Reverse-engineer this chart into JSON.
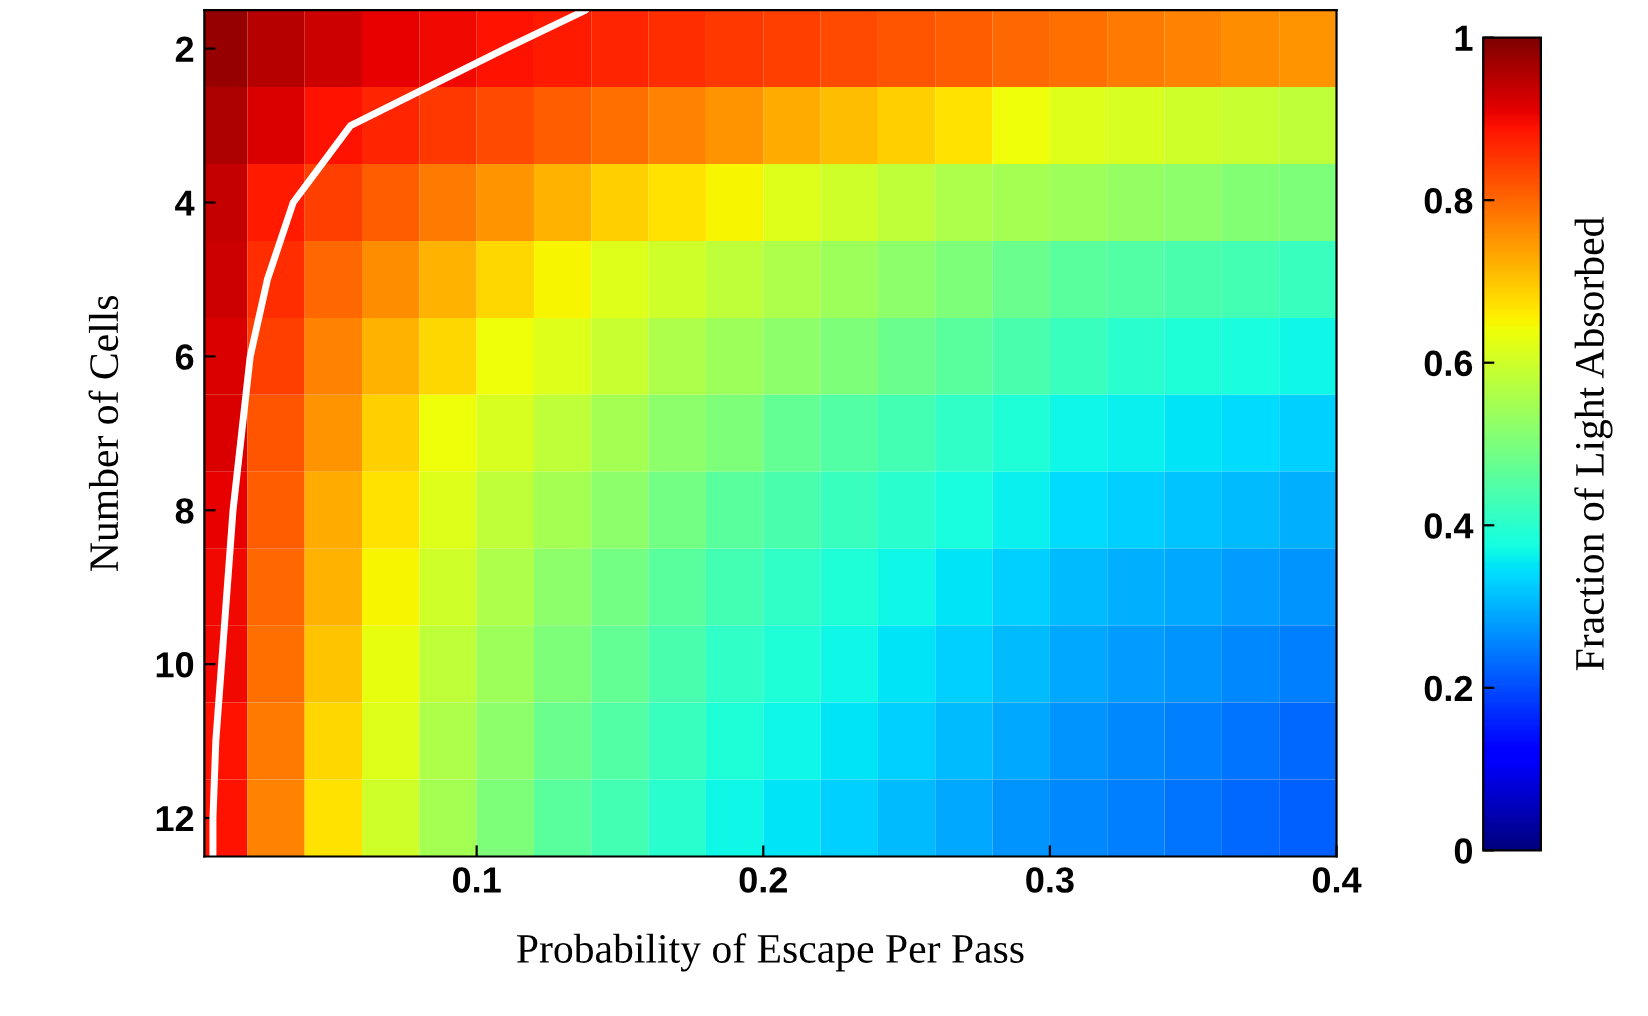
{
  "chart_data": {
    "type": "heatmap",
    "xlabel": "Probability of Escape Per Pass",
    "ylabel": "Number of Cells",
    "clabel": "Fraction of Light Absorbed",
    "x": [
      0.01,
      0.03,
      0.05,
      0.07,
      0.09,
      0.11,
      0.13,
      0.15,
      0.17,
      0.19,
      0.21,
      0.23,
      0.25,
      0.27,
      0.29,
      0.31,
      0.33,
      0.35,
      0.37,
      0.39
    ],
    "y": [
      2,
      3,
      4,
      5,
      6,
      7,
      8,
      9,
      10,
      11,
      12
    ],
    "xlim": [
      0.005,
      0.4
    ],
    "xticks": [
      0.1,
      0.2,
      0.3,
      0.4
    ],
    "ylim": [
      12.5,
      1.5
    ],
    "yticks": [
      2,
      4,
      6,
      8,
      10,
      12
    ],
    "clim": [
      0,
      1
    ],
    "cticks": [
      0,
      0.2,
      0.4,
      0.6,
      0.8,
      1
    ],
    "cells": [
      [
        0.98,
        0.95,
        0.93,
        0.91,
        0.9,
        0.89,
        0.88,
        0.87,
        0.86,
        0.85,
        0.84,
        0.83,
        0.82,
        0.81,
        0.8,
        0.79,
        0.78,
        0.77,
        0.76,
        0.75
      ],
      [
        0.96,
        0.92,
        0.89,
        0.87,
        0.85,
        0.83,
        0.81,
        0.79,
        0.77,
        0.75,
        0.73,
        0.71,
        0.69,
        0.67,
        0.64,
        0.62,
        0.61,
        0.6,
        0.59,
        0.58
      ],
      [
        0.94,
        0.88,
        0.84,
        0.81,
        0.78,
        0.75,
        0.72,
        0.69,
        0.67,
        0.65,
        0.62,
        0.6,
        0.58,
        0.56,
        0.55,
        0.54,
        0.53,
        0.52,
        0.51,
        0.5
      ],
      [
        0.93,
        0.86,
        0.8,
        0.76,
        0.72,
        0.68,
        0.65,
        0.62,
        0.6,
        0.58,
        0.56,
        0.54,
        0.52,
        0.5,
        0.48,
        0.46,
        0.45,
        0.44,
        0.43,
        0.42
      ],
      [
        0.92,
        0.84,
        0.77,
        0.72,
        0.68,
        0.64,
        0.62,
        0.59,
        0.56,
        0.54,
        0.52,
        0.5,
        0.48,
        0.46,
        0.44,
        0.42,
        0.4,
        0.39,
        0.38,
        0.37
      ],
      [
        0.92,
        0.82,
        0.75,
        0.69,
        0.64,
        0.61,
        0.58,
        0.55,
        0.52,
        0.5,
        0.47,
        0.45,
        0.43,
        0.41,
        0.39,
        0.37,
        0.36,
        0.35,
        0.34,
        0.33
      ],
      [
        0.91,
        0.81,
        0.73,
        0.67,
        0.62,
        0.58,
        0.55,
        0.52,
        0.49,
        0.46,
        0.44,
        0.42,
        0.4,
        0.38,
        0.36,
        0.34,
        0.33,
        0.32,
        0.31,
        0.3
      ],
      [
        0.9,
        0.8,
        0.72,
        0.65,
        0.6,
        0.56,
        0.52,
        0.49,
        0.46,
        0.43,
        0.41,
        0.39,
        0.37,
        0.35,
        0.33,
        0.31,
        0.3,
        0.29,
        0.28,
        0.27
      ],
      [
        0.9,
        0.79,
        0.7,
        0.63,
        0.58,
        0.54,
        0.5,
        0.47,
        0.44,
        0.41,
        0.39,
        0.37,
        0.35,
        0.33,
        0.31,
        0.29,
        0.28,
        0.27,
        0.26,
        0.25
      ],
      [
        0.89,
        0.78,
        0.68,
        0.62,
        0.56,
        0.52,
        0.48,
        0.45,
        0.42,
        0.39,
        0.37,
        0.35,
        0.33,
        0.31,
        0.29,
        0.27,
        0.26,
        0.25,
        0.24,
        0.23
      ],
      [
        0.89,
        0.77,
        0.67,
        0.6,
        0.55,
        0.5,
        0.46,
        0.43,
        0.4,
        0.37,
        0.35,
        0.33,
        0.31,
        0.29,
        0.27,
        0.26,
        0.25,
        0.24,
        0.23,
        0.22
      ]
    ],
    "series": [
      {
        "type": "line",
        "color": "#ffffff",
        "x": [
          0.138,
          0.11,
          0.056,
          0.036,
          0.027,
          0.021,
          0.018,
          0.015,
          0.013,
          0.011,
          0.009,
          0.008,
          0.008
        ],
        "values": [
          1.5,
          2,
          3,
          4,
          5,
          6,
          7,
          8,
          9,
          10,
          11,
          12,
          12.5
        ]
      }
    ],
    "grid": false
  }
}
